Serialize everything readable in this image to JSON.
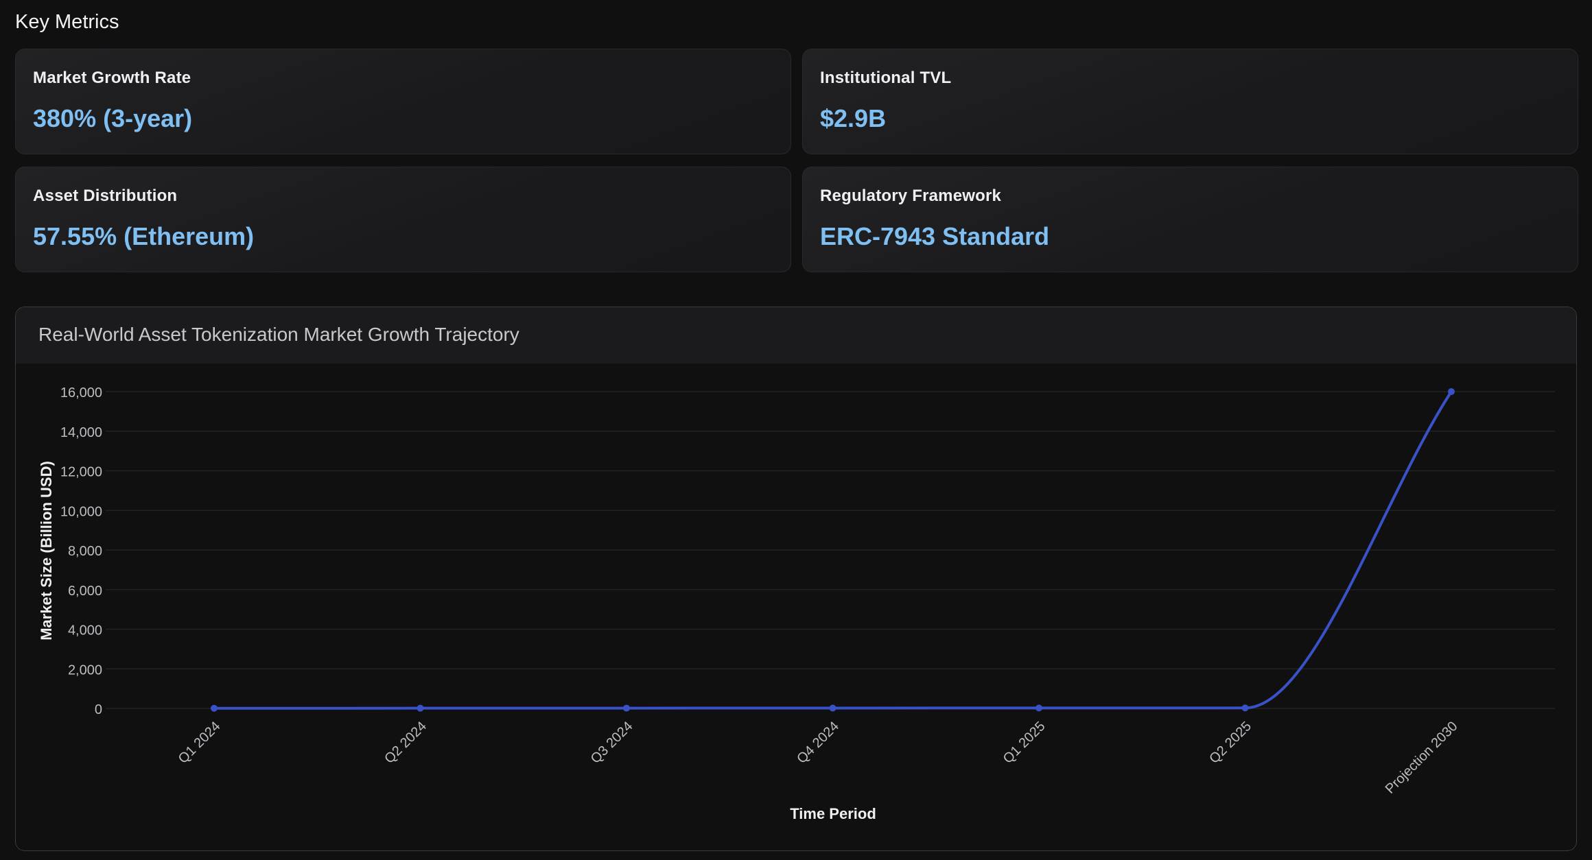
{
  "section_title": "Key Metrics",
  "metrics": [
    {
      "label": "Market Growth Rate",
      "value": "380% (3-year)"
    },
    {
      "label": "Institutional TVL",
      "value": "$2.9B"
    },
    {
      "label": "Asset Distribution",
      "value": "57.55% (Ethereum)"
    },
    {
      "label": "Regulatory Framework",
      "value": "ERC-7943 Standard"
    }
  ],
  "colors": {
    "accent_value": "#7fbff2",
    "line": "#3a52c8",
    "background": "#101011"
  },
  "chart_data": {
    "type": "line",
    "title": "Real-World Asset Tokenization Market Growth Trajectory",
    "xlabel": "Time Period",
    "ylabel": "Market Size (Billion USD)",
    "categories": [
      "Q1 2024",
      "Q2 2024",
      "Q3 2024",
      "Q4 2024",
      "Q1 2025",
      "Q2 2025",
      "Projection 2030"
    ],
    "series": [
      {
        "values": [
          8,
          12,
          15,
          18,
          21,
          24,
          16000
        ]
      }
    ],
    "ylim": [
      0,
      16000
    ],
    "yticks": [
      0,
      2000,
      4000,
      6000,
      8000,
      10000,
      12000,
      14000,
      16000
    ],
    "ytick_labels": [
      "0",
      "2,000",
      "4,000",
      "6,000",
      "8,000",
      "10,000",
      "12,000",
      "14,000",
      "16,000"
    ],
    "grid": true,
    "smooth": true
  }
}
